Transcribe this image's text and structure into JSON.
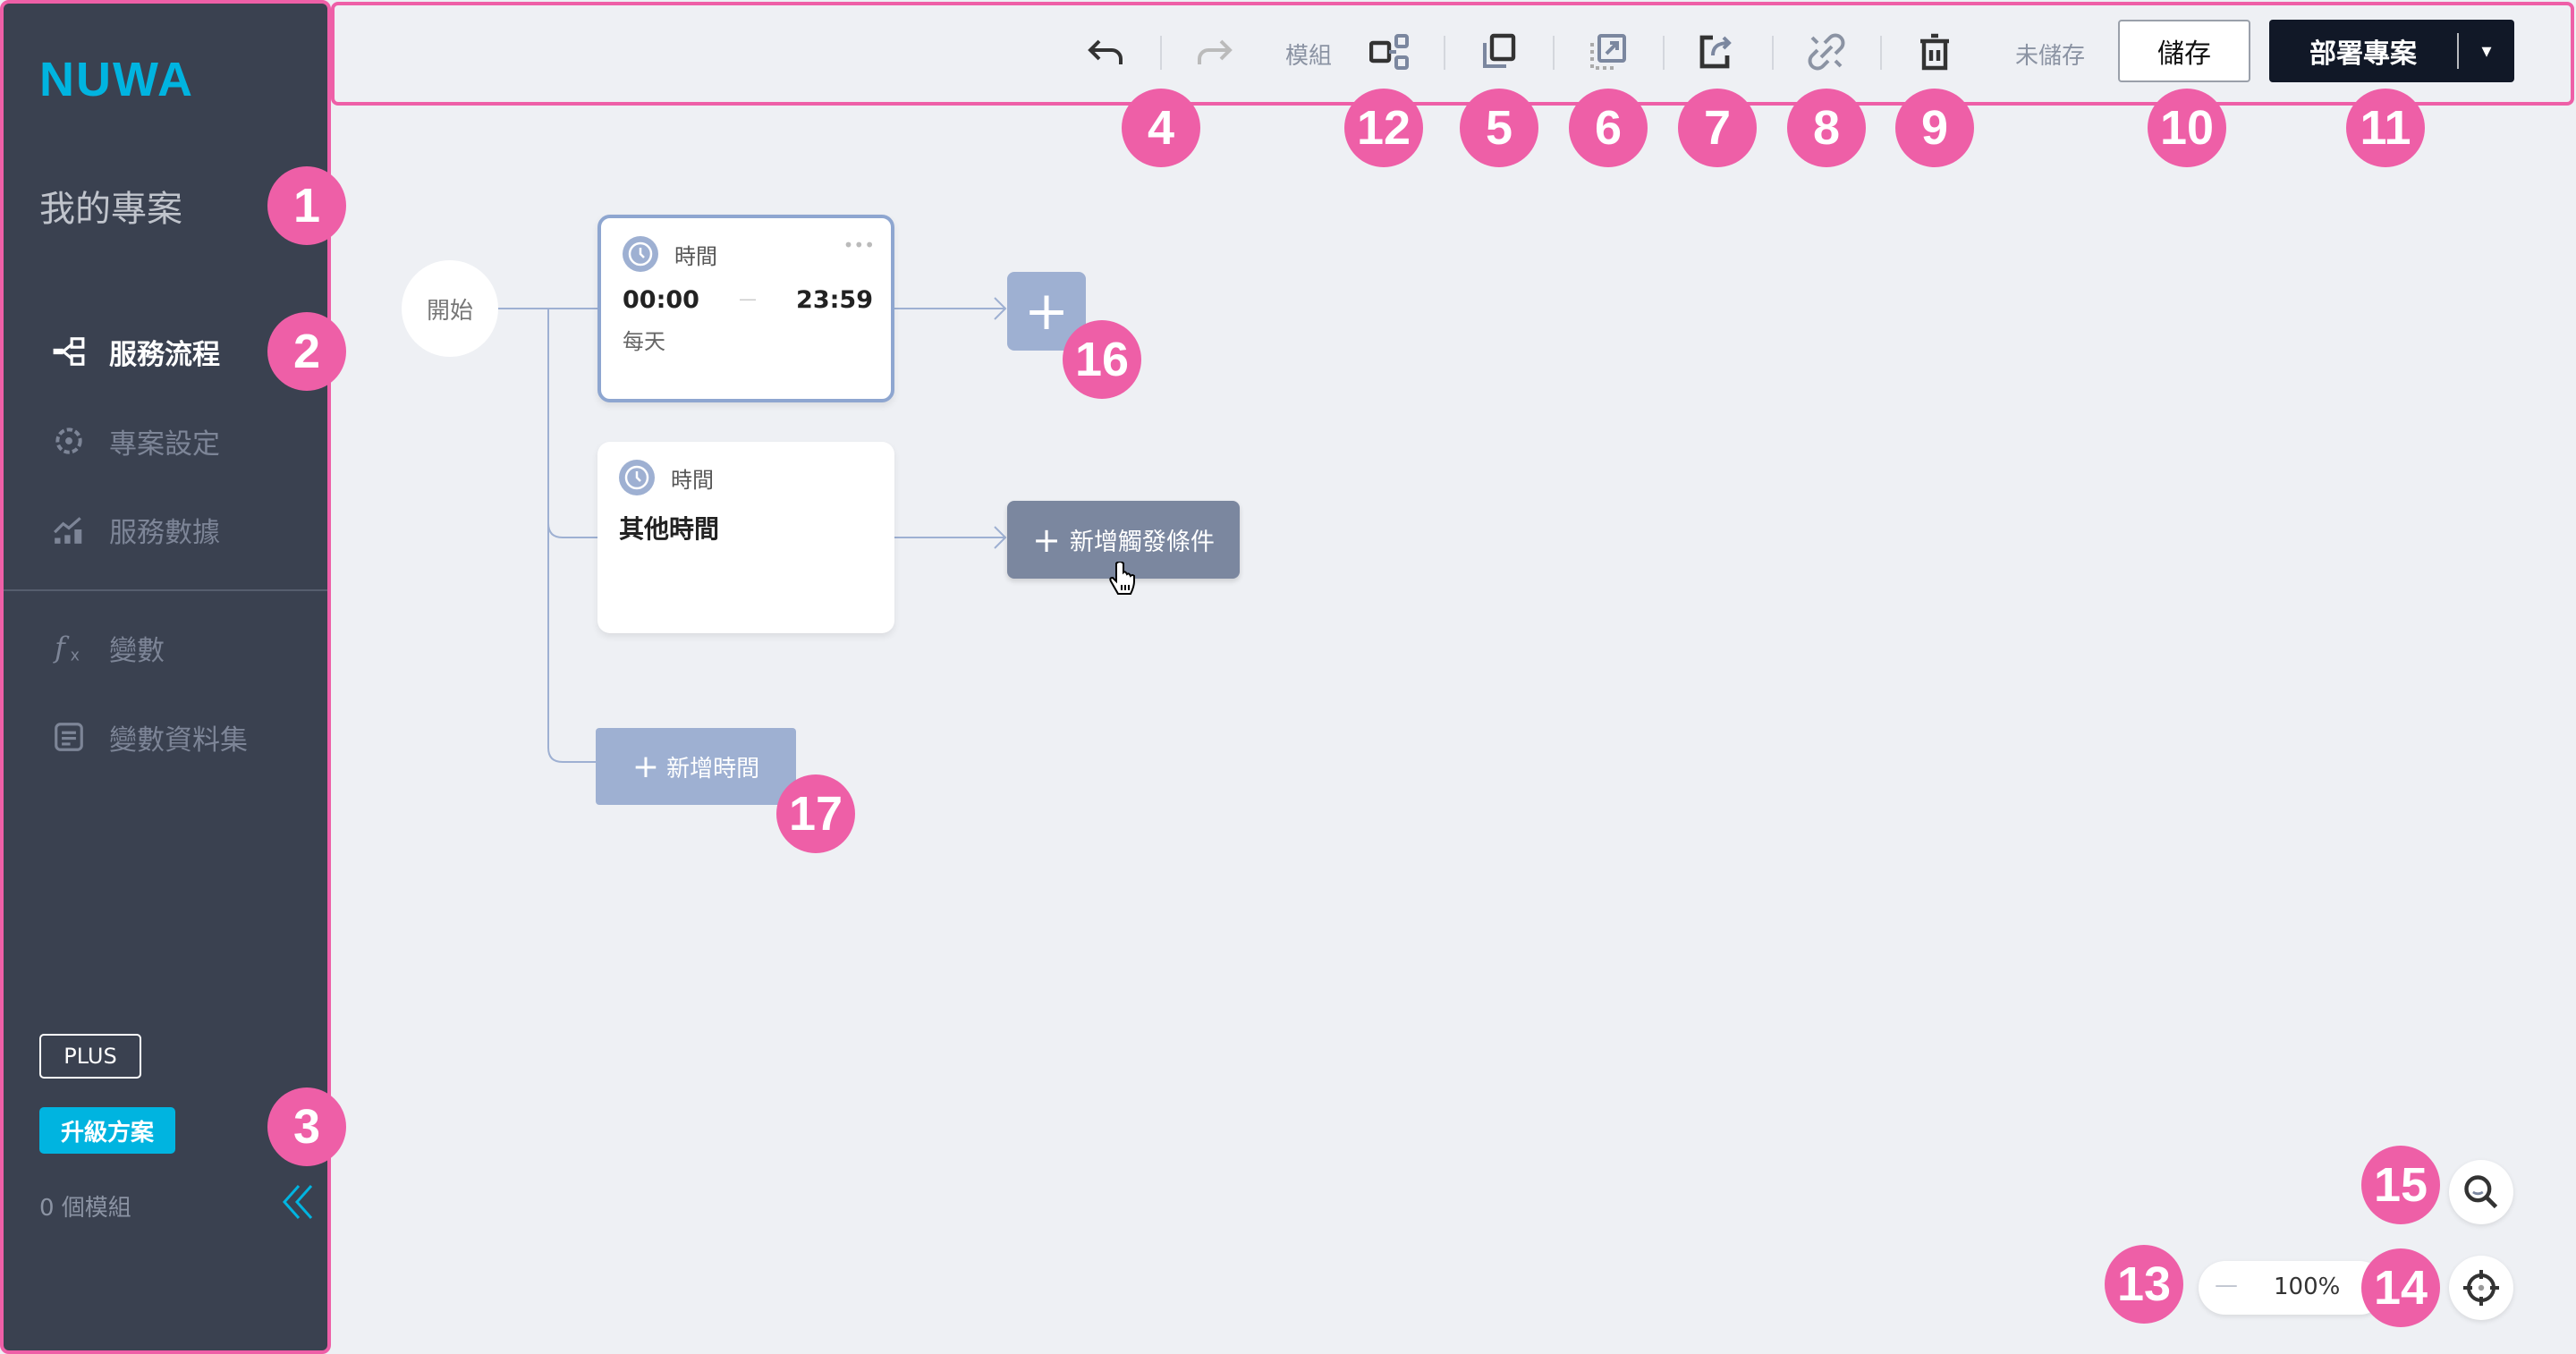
{
  "sidebar": {
    "logo": "NUWA",
    "project_title": "我的專案",
    "nav": [
      {
        "label": "服務流程",
        "icon": "flow-icon",
        "active": true
      },
      {
        "label": "專案設定",
        "icon": "gear-icon"
      },
      {
        "label": "服務數據",
        "icon": "chart-icon"
      },
      {
        "label": "變數",
        "icon": "function-icon"
      },
      {
        "label": "變數資料集",
        "icon": "document-icon"
      }
    ],
    "plan_badge": "PLUS",
    "upgrade_label": "升級方案",
    "module_count": "0 個模組"
  },
  "toolbar": {
    "module_label": "模組",
    "unsaved_label": "未儲存",
    "save_label": "儲存",
    "deploy_label": "部署專案",
    "deploy_caret": "▾"
  },
  "canvas": {
    "start_label": "開始",
    "cards": [
      {
        "type_label": "時間",
        "start": "00:00",
        "dash": "—",
        "end": "23:59",
        "repeat": "每天",
        "menu": "•••"
      },
      {
        "type_label": "時間",
        "title": "其他時間"
      }
    ],
    "add_trigger_label": "新增觸發條件",
    "add_time_label": "新增時間",
    "plus_symbol": "+"
  },
  "zoom": {
    "minus": "—",
    "level": "100%"
  },
  "annotations": [
    "1",
    "2",
    "3",
    "4",
    "5",
    "6",
    "7",
    "8",
    "9",
    "10",
    "11",
    "12",
    "13",
    "14",
    "15",
    "16",
    "17"
  ],
  "colors": {
    "accent": "#00b4e0",
    "sidebar_bg": "#3a4150",
    "annotation": "#ee5fa7",
    "deploy_bg": "#111827",
    "node_border": "#8ea6d0"
  }
}
